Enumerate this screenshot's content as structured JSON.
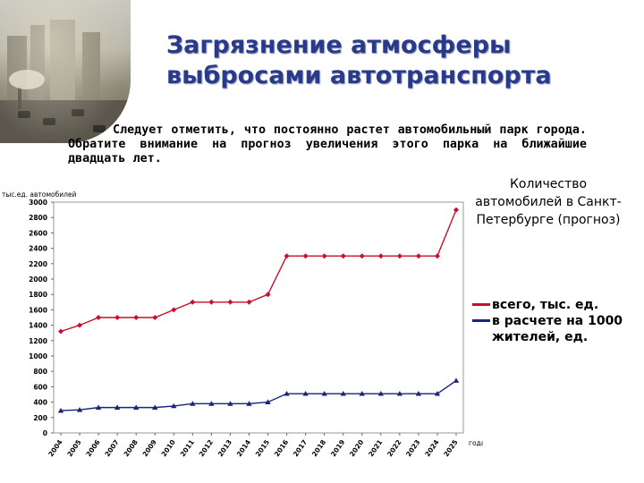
{
  "header": {
    "title_line1": "Загрязнение атмосферы",
    "title_line2": "выбросами автотранспорта"
  },
  "intro_text": "Следует отметить, что постоянно растет автомобильный парк города. Обратите внимание на прогноз увеличения этого парка на ближайшие двадцать лет.",
  "side_title": "Количество автомобилей в Санкт-Петербурге (прогноз)",
  "legend": [
    {
      "label": "всего, тыс. ед.",
      "color": "#c8102e"
    },
    {
      "label": "в расчете на 1000 жителей, ед.",
      "color": "#1a237e"
    }
  ],
  "chart_data": {
    "type": "line",
    "ylabel": "тыс.ед. автомобилей",
    "xlabel": "года",
    "ylim": [
      0,
      3000
    ],
    "y_ticks": [
      0,
      200,
      400,
      600,
      800,
      1000,
      1200,
      1400,
      1600,
      1800,
      2000,
      2200,
      2400,
      2600,
      2800,
      3000
    ],
    "categories": [
      "2004",
      "2005",
      "2006",
      "2007",
      "2008",
      "2009",
      "2010",
      "2011",
      "2012",
      "2013",
      "2014",
      "2015",
      "2016",
      "2017",
      "2018",
      "2019",
      "2020",
      "2021",
      "2022",
      "2023",
      "2024",
      "2025"
    ],
    "grid": false,
    "series": [
      {
        "name": "всего, тыс. ед.",
        "color": "#c8102e",
        "marker": "diamond",
        "values": [
          1320,
          1400,
          1500,
          1500,
          1500,
          1500,
          1600,
          1700,
          1700,
          1700,
          1700,
          1800,
          2300,
          2300,
          2300,
          2300,
          2300,
          2300,
          2300,
          2300,
          2300,
          2900
        ]
      },
      {
        "name": "в расчете на 1000 жителей, ед.",
        "color": "#1a237e",
        "marker": "triangle",
        "values": [
          290,
          300,
          330,
          330,
          330,
          330,
          350,
          380,
          380,
          380,
          380,
          400,
          510,
          510,
          510,
          510,
          510,
          510,
          510,
          510,
          510,
          680
        ]
      }
    ]
  }
}
